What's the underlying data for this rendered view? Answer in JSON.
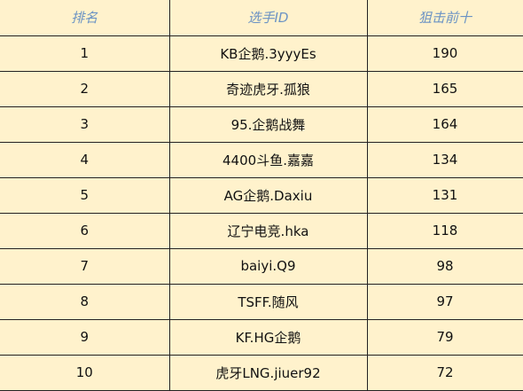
{
  "table": {
    "headers": {
      "rank": "排名",
      "player_id": "选手ID",
      "kills": "狙击前十"
    },
    "rows": [
      {
        "rank": "1",
        "player_id": "KB企鹅.3yyyEs",
        "kills": "190"
      },
      {
        "rank": "2",
        "player_id": "奇迹虎牙.孤狼",
        "kills": "165"
      },
      {
        "rank": "3",
        "player_id": "95.企鹅战舞",
        "kills": "164"
      },
      {
        "rank": "4",
        "player_id": "4400斗鱼.嘉嘉",
        "kills": "134"
      },
      {
        "rank": "5",
        "player_id": "AG企鹅.Daxiu",
        "kills": "131"
      },
      {
        "rank": "6",
        "player_id": "辽宁电竞.hka",
        "kills": "118"
      },
      {
        "rank": "7",
        "player_id": "baiyi.Q9",
        "kills": "98"
      },
      {
        "rank": "8",
        "player_id": "TSFF.随风",
        "kills": "97"
      },
      {
        "rank": "9",
        "player_id": "KF.HG企鹅",
        "kills": "79"
      },
      {
        "rank": "10",
        "player_id": "虎牙LNG.jiuer92",
        "kills": "72"
      }
    ]
  },
  "colors": {
    "cell_background": "#fff2cc",
    "header_text": "#6b93c4",
    "grid_line": "#222222"
  }
}
